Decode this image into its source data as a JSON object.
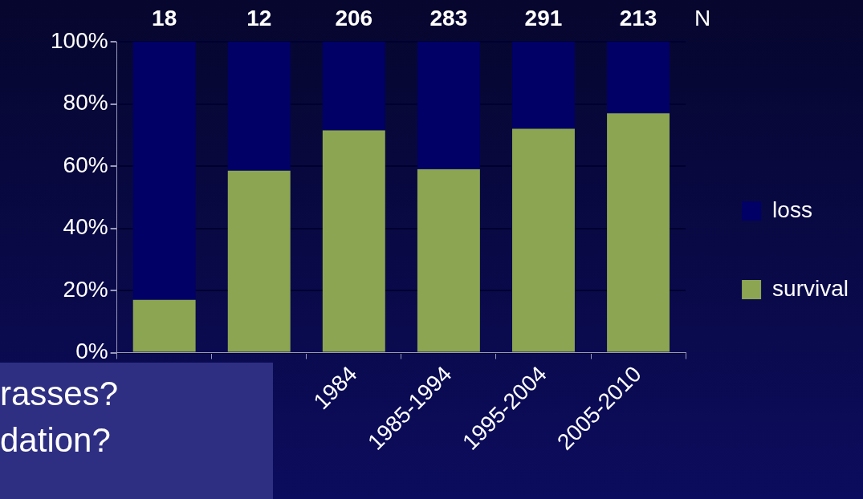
{
  "chart_data": {
    "type": "bar",
    "stacked": true,
    "categories": [
      null,
      null,
      "1984",
      "1985-1994",
      "1995-2004",
      "2005-2010"
    ],
    "series": [
      {
        "name": "survival",
        "color": "#8ca552",
        "values": [
          17,
          58.5,
          71.5,
          59,
          72,
          77
        ]
      },
      {
        "name": "loss",
        "color": "#000066",
        "values": [
          83,
          41.5,
          28.5,
          41,
          28,
          23
        ]
      }
    ],
    "ylim": [
      0,
      100
    ],
    "yticks": [
      {
        "value": 0,
        "label": "0%"
      },
      {
        "value": 20,
        "label": "20%"
      },
      {
        "value": 40,
        "label": "40%"
      },
      {
        "value": 60,
        "label": "60%"
      },
      {
        "value": 80,
        "label": "80%"
      },
      {
        "value": 100,
        "label": "100%"
      }
    ],
    "grid": "y",
    "legend": "right",
    "annotations": [
      "18",
      "12",
      "206",
      "283",
      "291",
      "213",
      "N",
      "rasses?",
      "dation?"
    ]
  }
}
